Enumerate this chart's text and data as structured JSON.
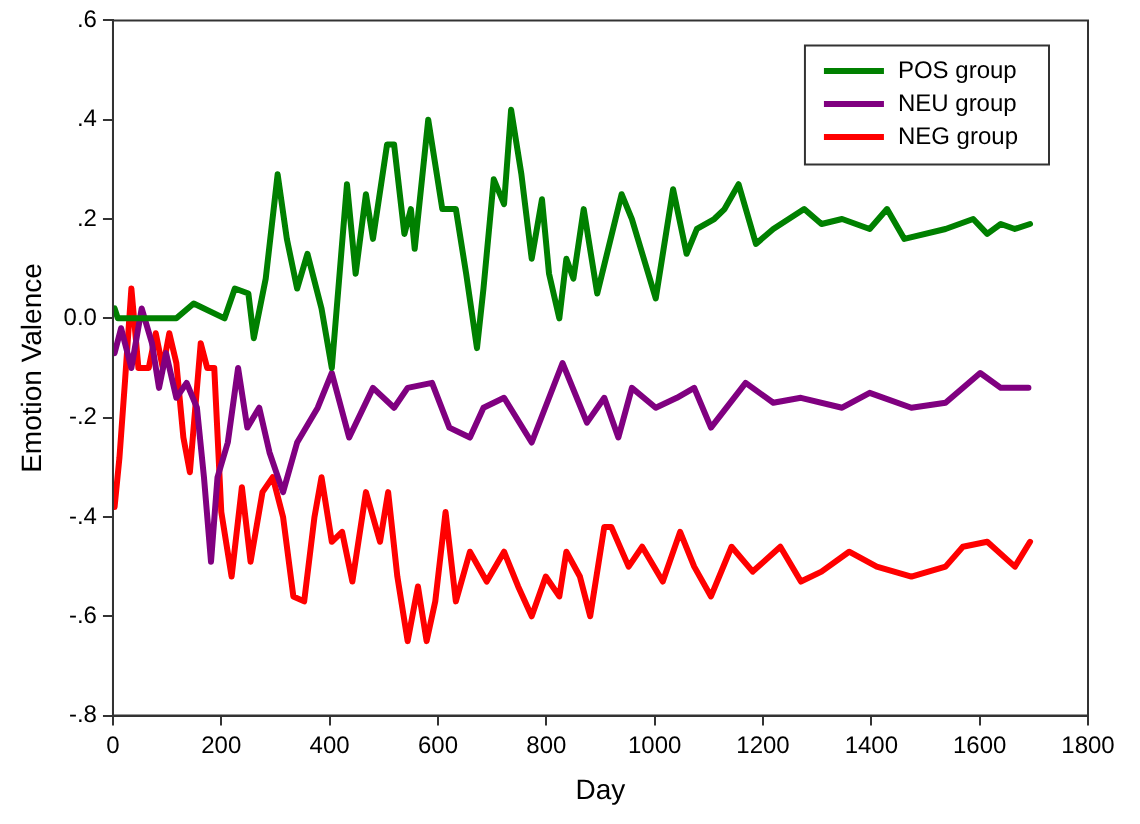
{
  "chart_data": {
    "type": "line",
    "xlabel": "Day",
    "ylabel": "Emotion Valence",
    "xlim": [
      0,
      1800
    ],
    "xticks": [
      0,
      200,
      400,
      600,
      800,
      1000,
      1200,
      1400,
      1600,
      1800
    ],
    "ylim": [
      -0.8,
      0.6
    ],
    "yticks": [
      {
        "value": -0.8,
        "label": "-.8"
      },
      {
        "value": -0.6,
        "label": "-.6"
      },
      {
        "value": -0.4,
        "label": "-.4"
      },
      {
        "value": -0.2,
        "label": "-.2"
      },
      {
        "value": 0,
        "label": "0.0"
      },
      {
        "value": 0.2,
        "label": ".2"
      },
      {
        "value": 0.4,
        "label": ".4"
      },
      {
        "value": 0.6,
        "label": ".6"
      }
    ],
    "grid": false,
    "legend": "top right",
    "marker": "none",
    "line_style": "solid",
    "series": [
      {
        "name": "POS group",
        "color": "#008000",
        "x": [
          3,
          9,
          66,
          117,
          149,
          206,
          225,
          250,
          260,
          282,
          304,
          321,
          340,
          359,
          385,
          404,
          432,
          448,
          467,
          480,
          506,
          519,
          538,
          550,
          557,
          582,
          608,
          633,
          652,
          672,
          684,
          703,
          722,
          735,
          754,
          773,
          792,
          805,
          824,
          837,
          850,
          869,
          894,
          939,
          958,
          1002,
          1034,
          1059,
          1078,
          1110,
          1129,
          1155,
          1187,
          1219,
          1276,
          1308,
          1346,
          1397,
          1429,
          1461,
          1537,
          1588,
          1614,
          1639,
          1665,
          1693
        ],
        "values": [
          0.02,
          0.0,
          0.0,
          0.0,
          0.03,
          0.0,
          0.06,
          0.05,
          -0.04,
          0.08,
          0.29,
          0.16,
          0.06,
          0.13,
          0.02,
          -0.1,
          0.27,
          0.09,
          0.25,
          0.16,
          0.35,
          0.35,
          0.17,
          0.22,
          0.14,
          0.4,
          0.22,
          0.22,
          0.09,
          -0.06,
          0.06,
          0.28,
          0.23,
          0.42,
          0.29,
          0.12,
          0.24,
          0.09,
          0.0,
          0.12,
          0.08,
          0.22,
          0.05,
          0.25,
          0.2,
          0.04,
          0.26,
          0.13,
          0.18,
          0.2,
          0.22,
          0.27,
          0.15,
          0.18,
          0.22,
          0.19,
          0.2,
          0.18,
          0.22,
          0.16,
          0.18,
          0.2,
          0.17,
          0.19,
          0.18,
          0.19
        ]
      },
      {
        "name": "NEU group",
        "color": "#800080",
        "x": [
          3,
          15,
          34,
          53,
          72,
          85,
          98,
          117,
          136,
          155,
          168,
          181,
          193,
          212,
          231,
          248,
          270,
          289,
          314,
          340,
          378,
          404,
          436,
          480,
          519,
          544,
          589,
          621,
          659,
          684,
          722,
          773,
          830,
          875,
          907,
          933,
          958,
          1002,
          1041,
          1073,
          1104,
          1168,
          1219,
          1270,
          1346,
          1397,
          1474,
          1537,
          1601,
          1639,
          1690
        ],
        "values": [
          -0.07,
          -0.02,
          -0.1,
          0.02,
          -0.05,
          -0.14,
          -0.07,
          -0.16,
          -0.13,
          -0.18,
          -0.32,
          -0.49,
          -0.32,
          -0.25,
          -0.1,
          -0.22,
          -0.18,
          -0.27,
          -0.35,
          -0.25,
          -0.18,
          -0.11,
          -0.24,
          -0.14,
          -0.18,
          -0.14,
          -0.13,
          -0.22,
          -0.24,
          -0.18,
          -0.16,
          -0.25,
          -0.09,
          -0.21,
          -0.16,
          -0.24,
          -0.14,
          -0.18,
          -0.16,
          -0.14,
          -0.22,
          -0.13,
          -0.17,
          -0.16,
          -0.18,
          -0.15,
          -0.18,
          -0.17,
          -0.11,
          -0.14,
          -0.14
        ]
      },
      {
        "name": "NEG group",
        "color": "#ff0000",
        "x": [
          3,
          12,
          22,
          34,
          47,
          66,
          79,
          92,
          104,
          117,
          130,
          142,
          162,
          174,
          187,
          200,
          219,
          238,
          254,
          276,
          295,
          314,
          333,
          353,
          372,
          385,
          404,
          423,
          442,
          467,
          493,
          508,
          525,
          544,
          563,
          579,
          595,
          614,
          633,
          659,
          690,
          722,
          748,
          773,
          799,
          824,
          837,
          862,
          881,
          907,
          920,
          952,
          977,
          1015,
          1047,
          1073,
          1104,
          1142,
          1181,
          1232,
          1270,
          1308,
          1359,
          1410,
          1474,
          1537,
          1569,
          1614,
          1665,
          1693
        ],
        "values": [
          -0.38,
          -0.28,
          -0.13,
          0.06,
          -0.1,
          -0.1,
          -0.03,
          -0.1,
          -0.03,
          -0.09,
          -0.24,
          -0.31,
          -0.05,
          -0.1,
          -0.1,
          -0.39,
          -0.52,
          -0.34,
          -0.49,
          -0.35,
          -0.32,
          -0.4,
          -0.56,
          -0.57,
          -0.4,
          -0.32,
          -0.45,
          -0.43,
          -0.53,
          -0.35,
          -0.45,
          -0.35,
          -0.52,
          -0.65,
          -0.54,
          -0.65,
          -0.57,
          -0.39,
          -0.57,
          -0.47,
          -0.53,
          -0.47,
          -0.54,
          -0.6,
          -0.52,
          -0.56,
          -0.47,
          -0.52,
          -0.6,
          -0.42,
          -0.42,
          -0.5,
          -0.46,
          -0.53,
          -0.43,
          -0.5,
          -0.56,
          -0.46,
          -0.51,
          -0.46,
          -0.53,
          -0.51,
          -0.47,
          -0.5,
          -0.52,
          -0.5,
          -0.46,
          -0.45,
          -0.5,
          -0.45
        ]
      }
    ]
  }
}
